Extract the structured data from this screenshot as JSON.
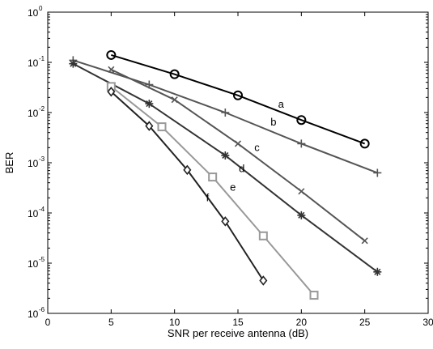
{
  "chart_data": {
    "type": "line",
    "title": "",
    "xlabel": "SNR per receive antenna (dB)",
    "ylabel": "BER",
    "xlim": [
      0,
      30
    ],
    "ylim": [
      1e-06,
      1
    ],
    "yscale": "log",
    "x_ticks": [
      "0",
      "5",
      "10",
      "15",
      "20",
      "25",
      "30"
    ],
    "y_ticks": [
      {
        "base": "10",
        "exp": "0",
        "value": 1
      },
      {
        "base": "10",
        "exp": "-1",
        "value": 0.1
      },
      {
        "base": "10",
        "exp": "-2",
        "value": 0.01
      },
      {
        "base": "10",
        "exp": "-3",
        "value": 0.001
      },
      {
        "base": "10",
        "exp": "-4",
        "value": 0.0001
      },
      {
        "base": "10",
        "exp": "-5",
        "value": 1e-05
      },
      {
        "base": "10",
        "exp": "-6",
        "value": 1e-06
      }
    ],
    "grid": false,
    "legend": "none",
    "series": [
      {
        "label": "a",
        "marker": "circle",
        "color": "#000000",
        "x": [
          5,
          10,
          15,
          20,
          25
        ],
        "y": [
          0.14,
          0.058,
          0.022,
          0.0071,
          0.0024
        ],
        "label_at": [
          18.4,
          0.0126
        ]
      },
      {
        "label": "b",
        "marker": "plus",
        "color": "#555555",
        "x": [
          2,
          8,
          14,
          20,
          26
        ],
        "y": [
          0.11,
          0.036,
          0.01,
          0.0024,
          0.00063
        ],
        "label_at": [
          17.8,
          0.0055
        ]
      },
      {
        "label": "c",
        "marker": "x",
        "color": "#555555",
        "x": [
          5,
          10,
          15,
          20,
          25
        ],
        "y": [
          0.072,
          0.018,
          0.0024,
          0.00027,
          2.8e-05
        ],
        "label_at": [
          16.5,
          0.0017
        ]
      },
      {
        "label": "d",
        "marker": "star",
        "color": "#333333",
        "x": [
          2,
          8,
          14,
          20,
          26
        ],
        "y": [
          0.094,
          0.015,
          0.0014,
          9e-05,
          6.7e-06
        ],
        "label_at": [
          15.3,
          0.00065
        ]
      },
      {
        "label": "e",
        "marker": "square",
        "color": "#999999",
        "x": [
          5,
          9,
          13,
          17,
          21
        ],
        "y": [
          0.033,
          0.0052,
          0.00052,
          3.5e-05,
          2.3e-06
        ],
        "label_at": [
          14.6,
          0.00028
        ]
      },
      {
        "label": "f",
        "marker": "diamond",
        "color": "#222222",
        "x": [
          5,
          8,
          11,
          14,
          17
        ],
        "y": [
          0.026,
          0.0054,
          0.00072,
          6.8e-05,
          4.5e-06
        ],
        "label_at": [
          12.6,
          0.00017
        ]
      }
    ]
  }
}
